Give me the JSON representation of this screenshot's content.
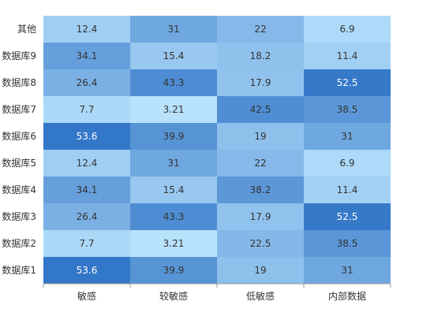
{
  "chart_data": {
    "type": "heatmap",
    "x_categories": [
      "敏感",
      "较敏感",
      "低敏感",
      "内部数据"
    ],
    "y_categories": [
      "其他",
      "数据库9",
      "数据库8",
      "数据库7",
      "数据库6",
      "数据库5",
      "数据库4",
      "数据库3",
      "数据库2",
      "数据库1"
    ],
    "values": [
      [
        "12.4",
        "31",
        "22",
        "6.9"
      ],
      [
        "34.1",
        "15.4",
        "18.2",
        "11.4"
      ],
      [
        "26.4",
        "43.3",
        "17.9",
        "52.5"
      ],
      [
        "7.7",
        "3.21",
        "42.5",
        "38.5"
      ],
      [
        "53.6",
        "39.9",
        "19",
        "31"
      ],
      [
        "12.4",
        "31",
        "22",
        "6.9"
      ],
      [
        "34.1",
        "15.4",
        "38.2",
        "11.4"
      ],
      [
        "26.4",
        "43.3",
        "17.9",
        "52.5"
      ],
      [
        "7.7",
        "3.21",
        "22.5",
        "38.5"
      ],
      [
        "53.6",
        "39.9",
        "19",
        "31"
      ]
    ],
    "value_range": [
      3.21,
      53.6
    ],
    "color_low": "#b8e1fc",
    "color_high": "#3377c8",
    "label_color_light": "#ffffff",
    "label_color_dark": "#333333",
    "axis_color": "#999999"
  }
}
